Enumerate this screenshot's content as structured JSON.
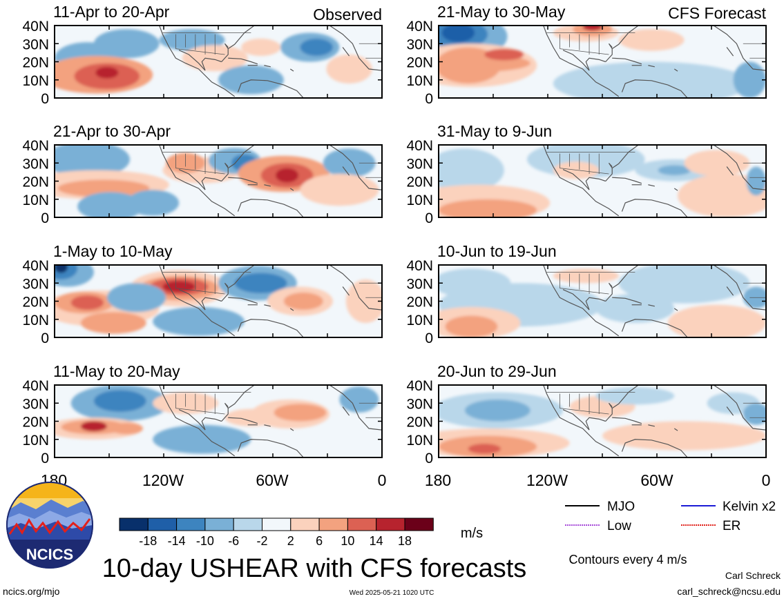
{
  "header": {
    "left_label": "Observed",
    "right_label": "CFS Forecast"
  },
  "chart_data": {
    "type": "heatmap",
    "title": "10-day USHEAR with CFS forecasts",
    "units": "m/s",
    "contour_note": "Contours every 4 m/s",
    "lat_labels": [
      "40N",
      "30N",
      "20N",
      "10N",
      "0"
    ],
    "lon_labels": [
      "180",
      "120W",
      "60W",
      "0"
    ],
    "color_levels": [
      -18,
      -14,
      -10,
      -6,
      -2,
      2,
      6,
      10,
      14,
      18
    ],
    "palette": [
      "#08306b",
      "#1f5fa8",
      "#3d84bf",
      "#7ab0d6",
      "#b9d7ea",
      "#f2f7fb",
      "#fbd2bd",
      "#f3a27f",
      "#dc6153",
      "#b7232e",
      "#6b0019"
    ],
    "panels": [
      {
        "column": "observed",
        "period": "11-Apr to 20-Apr"
      },
      {
        "column": "observed",
        "period": "21-Apr to 30-Apr"
      },
      {
        "column": "observed",
        "period": "1-May to 10-May"
      },
      {
        "column": "observed",
        "period": "11-May to 20-May"
      },
      {
        "column": "forecast",
        "period": "21-May to 30-May"
      },
      {
        "column": "forecast",
        "period": "31-May to 9-Jun"
      },
      {
        "column": "forecast",
        "period": "10-Jun to 19-Jun"
      },
      {
        "column": "forecast",
        "period": "20-Jun to 29-Jun"
      }
    ]
  },
  "legend": {
    "items": [
      {
        "label": "MJO",
        "color": "#000000"
      },
      {
        "label": "Kelvin x2",
        "color": "#1a1ad6"
      },
      {
        "label": "Low",
        "color": "#a64ad9"
      },
      {
        "label": "ER",
        "color": "#e0201a"
      }
    ]
  },
  "logo": {
    "text": "NCICS"
  },
  "footer": {
    "site": "ncics.org/mjo",
    "timestamp": "Wed 2025-05-21 1020 UTC",
    "author": "Carl Schreck",
    "email": "carl_schreck@ncsu.edu"
  }
}
